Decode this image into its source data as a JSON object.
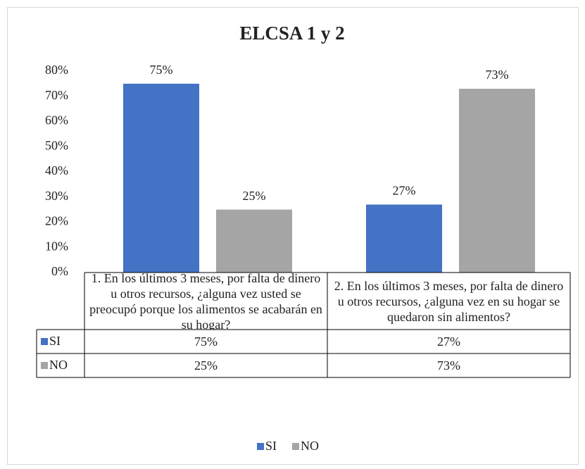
{
  "chart_data": {
    "type": "bar",
    "title": "ELCSA 1 y 2",
    "categories": [
      "1. En los últimos 3 meses, por falta de dinero u otros recursos, ¿alguna vez usted se preocupó porque los alimentos se acabarán en su hogar?",
      "2. En los últimos 3 meses, por falta de dinero u otros recursos, ¿alguna vez en su hogar se quedaron sin alimentos?"
    ],
    "series": [
      {
        "name": "SI",
        "color": "#4472c4",
        "values": [
          75,
          27
        ],
        "value_labels": [
          "75%",
          "27%"
        ]
      },
      {
        "name": "NO",
        "color": "#a5a5a5",
        "values": [
          25,
          73
        ],
        "value_labels": [
          "25%",
          "73%"
        ]
      }
    ],
    "ylim": [
      0,
      80
    ],
    "yticks": [
      {
        "value": 0,
        "label": "0%"
      },
      {
        "value": 10,
        "label": "10%"
      },
      {
        "value": 20,
        "label": "20%"
      },
      {
        "value": 30,
        "label": "30%"
      },
      {
        "value": 40,
        "label": "40%"
      },
      {
        "value": 50,
        "label": "50%"
      },
      {
        "value": 60,
        "label": "60%"
      },
      {
        "value": 70,
        "label": "70%"
      },
      {
        "value": 80,
        "label": "80%"
      }
    ],
    "grid": false,
    "legend": "bottom"
  }
}
